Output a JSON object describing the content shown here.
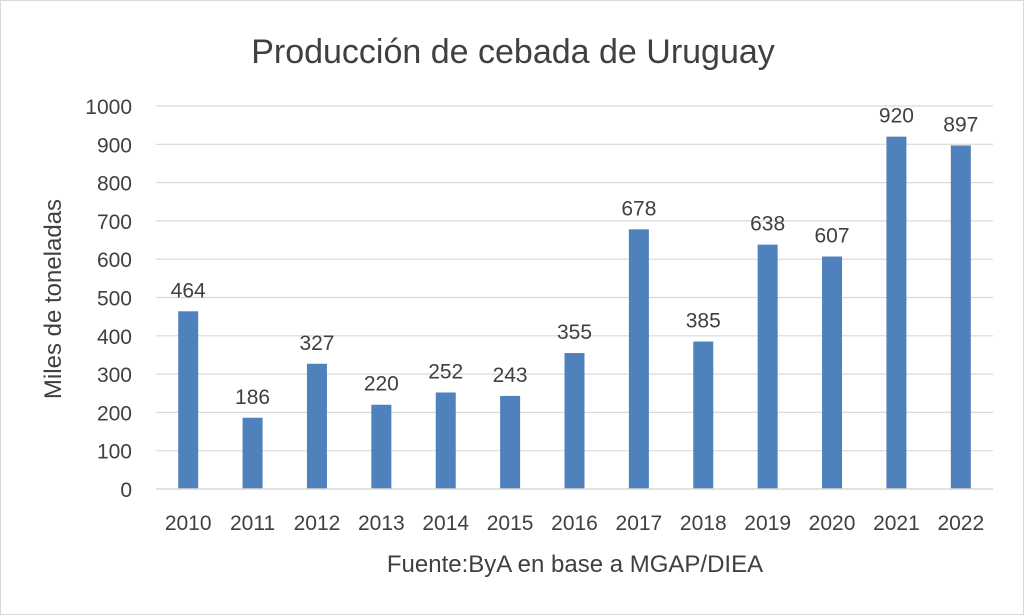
{
  "chart_data": {
    "type": "bar",
    "title": "Producción de cebada de Uruguay",
    "xlabel": "Fuente:ByA en base a MGAP/DIEA",
    "ylabel": "Miles de toneladas",
    "categories": [
      "2010",
      "2011",
      "2012",
      "2013",
      "2014",
      "2015",
      "2016",
      "2017",
      "2018",
      "2019",
      "2020",
      "2021",
      "2022"
    ],
    "values": [
      464,
      186,
      327,
      220,
      252,
      243,
      355,
      678,
      385,
      638,
      607,
      920,
      897
    ],
    "ylim": [
      0,
      1000
    ],
    "yticks": [
      0,
      100,
      200,
      300,
      400,
      500,
      600,
      700,
      800,
      900,
      1000
    ],
    "grid": true,
    "legend": "none",
    "colors": {
      "bar": "#4f81bd",
      "grid": "#d9d9d9",
      "text": "#404040"
    }
  }
}
